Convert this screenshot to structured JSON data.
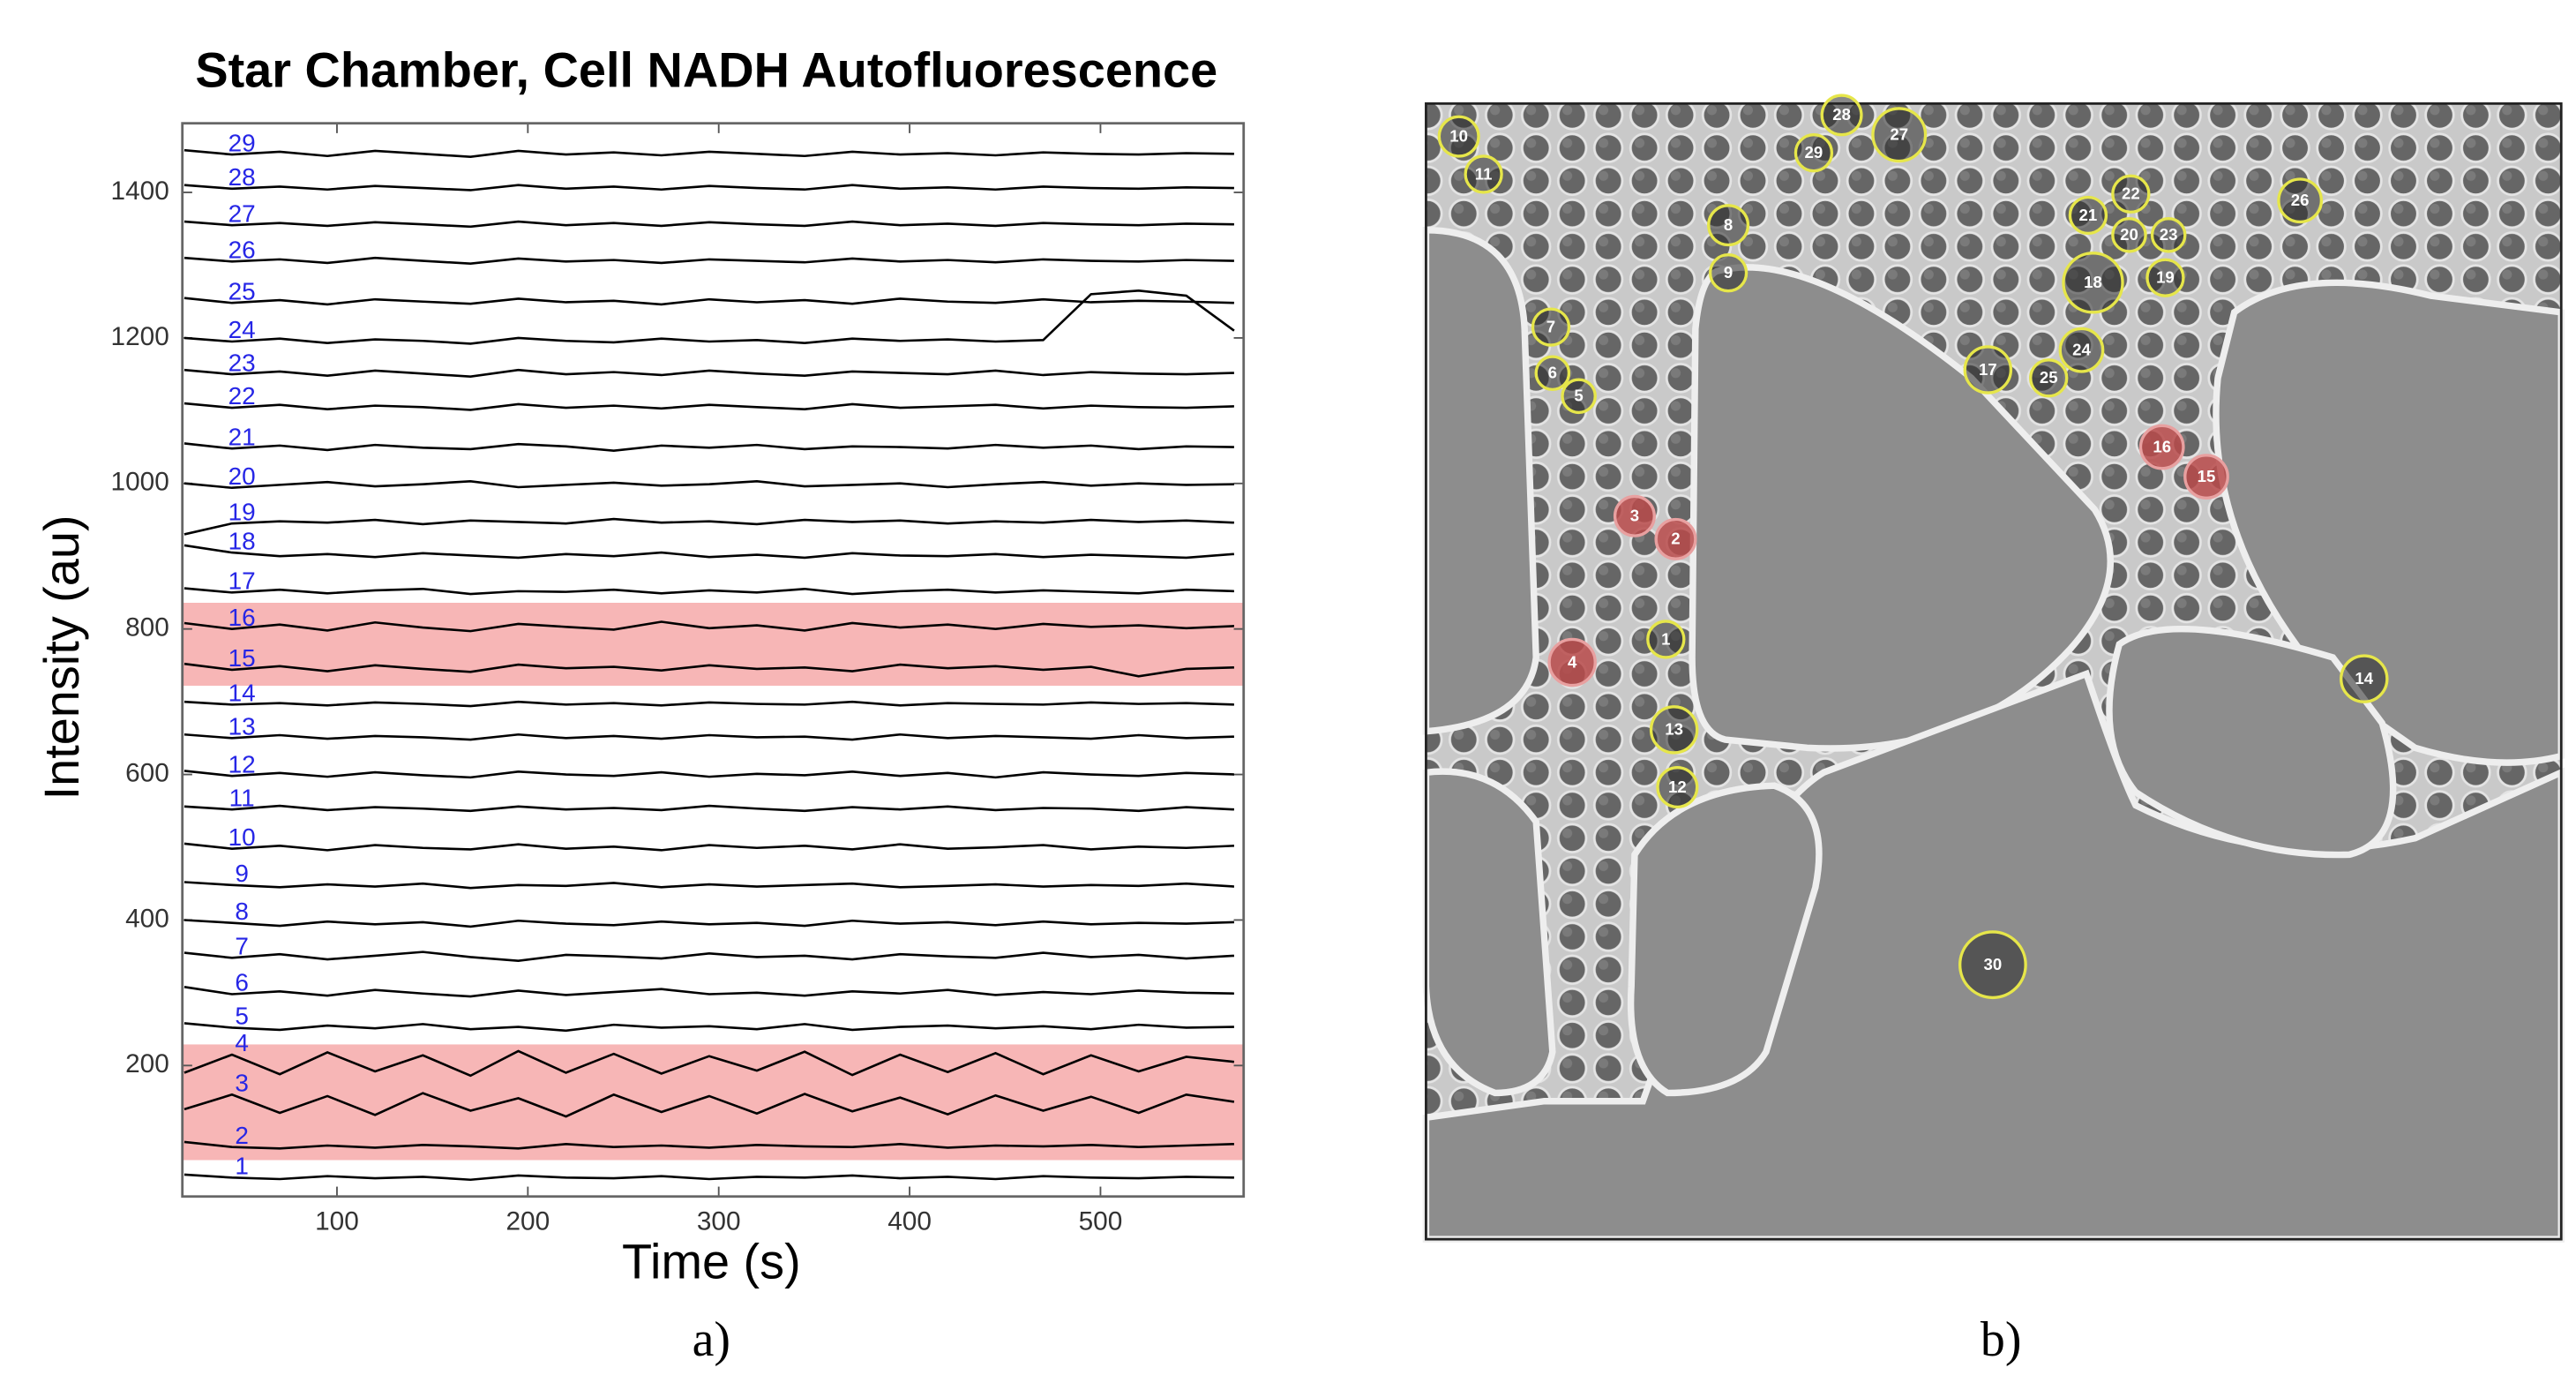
{
  "chart_data": {
    "type": "line",
    "title": "Star Chamber, Cell NADH Autofluorescence",
    "x_label": "Time (s)",
    "y_label": "Intensity (au)",
    "xlim": [
      19,
      575
    ],
    "xticks": [
      100,
      200,
      300,
      400,
      500
    ],
    "ylim": [
      20,
      1495
    ],
    "yticks": [
      200,
      400,
      600,
      800,
      1000,
      1200,
      1400
    ],
    "grid": false,
    "label_color": "#2626e6",
    "band_color": "#f7b6b6",
    "highlight_bands": [
      {
        "from": 70,
        "to": 229
      },
      {
        "from": 722,
        "to": 836
      }
    ],
    "x": [
      20,
      45,
      70,
      95,
      120,
      145,
      170,
      195,
      220,
      245,
      270,
      295,
      320,
      345,
      370,
      395,
      420,
      445,
      470,
      495,
      520,
      545,
      570
    ],
    "series": [
      {
        "name": "1",
        "color": "#000000",
        "values": [
          50,
          46,
          44,
          48,
          45,
          47,
          43,
          49,
          46,
          45,
          48,
          44,
          47,
          46,
          49,
          45,
          47,
          44,
          48,
          46,
          45,
          47,
          46
        ]
      },
      {
        "name": "2",
        "color": "#000000",
        "values": [
          95,
          88,
          86,
          90,
          87,
          91,
          89,
          86,
          92,
          88,
          90,
          87,
          91,
          89,
          88,
          92,
          87,
          90,
          89,
          91,
          88,
          90,
          92
        ]
      },
      {
        "name": "3",
        "color": "#000000",
        "values": [
          140,
          160,
          135,
          158,
          132,
          162,
          138,
          155,
          130,
          160,
          136,
          158,
          134,
          161,
          137,
          156,
          133,
          159,
          138,
          157,
          135,
          160,
          150
        ]
      },
      {
        "name": "4",
        "color": "#000000",
        "values": [
          190,
          215,
          188,
          218,
          192,
          214,
          186,
          220,
          190,
          216,
          189,
          213,
          193,
          219,
          187,
          215,
          191,
          217,
          188,
          214,
          192,
          212,
          205
        ]
      },
      {
        "name": "5",
        "color": "#000000",
        "values": [
          258,
          252,
          249,
          255,
          251,
          257,
          250,
          253,
          248,
          256,
          252,
          254,
          250,
          257,
          249,
          253,
          255,
          251,
          254,
          250,
          256,
          252,
          253
        ]
      },
      {
        "name": "6",
        "color": "#000000",
        "values": [
          308,
          298,
          302,
          296,
          304,
          299,
          295,
          303,
          297,
          301,
          305,
          298,
          300,
          296,
          302,
          299,
          304,
          297,
          301,
          298,
          303,
          300,
          299
        ]
      },
      {
        "name": "7",
        "color": "#000000",
        "values": [
          355,
          348,
          353,
          346,
          351,
          356,
          349,
          344,
          352,
          350,
          347,
          354,
          349,
          351,
          346,
          353,
          350,
          348,
          355,
          349,
          352,
          347,
          351
        ]
      },
      {
        "name": "8",
        "color": "#000000",
        "values": [
          400,
          396,
          392,
          398,
          394,
          397,
          391,
          399,
          395,
          393,
          398,
          394,
          396,
          392,
          399,
          395,
          397,
          393,
          398,
          394,
          396,
          395,
          397
        ]
      },
      {
        "name": "9",
        "color": "#000000",
        "values": [
          452,
          448,
          445,
          449,
          446,
          450,
          444,
          448,
          447,
          451,
          445,
          449,
          446,
          448,
          450,
          445,
          447,
          449,
          446,
          448,
          447,
          450,
          446
        ]
      },
      {
        "name": "10",
        "color": "#000000",
        "values": [
          505,
          498,
          502,
          496,
          503,
          499,
          497,
          504,
          498,
          501,
          496,
          503,
          499,
          502,
          497,
          504,
          498,
          500,
          503,
          497,
          501,
          499,
          502
        ]
      },
      {
        "name": "11",
        "color": "#000000",
        "values": [
          556,
          552,
          557,
          551,
          555,
          553,
          550,
          556,
          552,
          554,
          551,
          557,
          553,
          550,
          555,
          552,
          556,
          551,
          554,
          553,
          550,
          555,
          552
        ]
      },
      {
        "name": "12",
        "color": "#000000",
        "values": [
          605,
          598,
          602,
          597,
          603,
          599,
          596,
          604,
          600,
          598,
          603,
          597,
          601,
          599,
          604,
          598,
          602,
          596,
          603,
          600,
          598,
          602,
          600
        ]
      },
      {
        "name": "13",
        "color": "#000000",
        "values": [
          655,
          650,
          654,
          649,
          653,
          651,
          648,
          655,
          650,
          653,
          649,
          654,
          651,
          652,
          648,
          655,
          650,
          653,
          651,
          649,
          654,
          650,
          652
        ]
      },
      {
        "name": "14",
        "color": "#000000",
        "values": [
          700,
          696,
          698,
          695,
          699,
          697,
          694,
          700,
          696,
          698,
          695,
          699,
          697,
          696,
          700,
          695,
          698,
          697,
          696,
          699,
          697,
          698,
          696
        ]
      },
      {
        "name": "15",
        "color": "#000000",
        "values": [
          752,
          744,
          749,
          742,
          750,
          745,
          741,
          751,
          746,
          748,
          743,
          750,
          745,
          747,
          742,
          751,
          746,
          749,
          744,
          748,
          735,
          745,
          747
        ]
      },
      {
        "name": "16",
        "color": "#000000",
        "values": [
          808,
          800,
          806,
          798,
          809,
          802,
          797,
          807,
          803,
          799,
          810,
          801,
          805,
          798,
          808,
          802,
          806,
          800,
          807,
          803,
          805,
          801,
          804
        ]
      },
      {
        "name": "17",
        "color": "#000000",
        "values": [
          856,
          850,
          854,
          849,
          853,
          855,
          848,
          852,
          851,
          854,
          849,
          853,
          850,
          855,
          848,
          852,
          854,
          850,
          853,
          851,
          849,
          854,
          852
        ]
      },
      {
        "name": "18",
        "color": "#000000",
        "values": [
          915,
          905,
          900,
          903,
          899,
          904,
          901,
          898,
          903,
          900,
          905,
          899,
          902,
          898,
          904,
          901,
          900,
          903,
          899,
          902,
          900,
          898,
          903
        ]
      },
      {
        "name": "19",
        "color": "#000000",
        "values": [
          930,
          945,
          948,
          946,
          950,
          944,
          949,
          947,
          945,
          951,
          946,
          948,
          944,
          950,
          947,
          949,
          945,
          948,
          946,
          950,
          947,
          949,
          946
        ]
      },
      {
        "name": "20",
        "color": "#000000",
        "values": [
          1000,
          994,
          998,
          1002,
          996,
          999,
          1003,
          995,
          998,
          1001,
          997,
          999,
          1003,
          996,
          998,
          1000,
          995,
          999,
          1002,
          997,
          1000,
          998,
          999
        ]
      },
      {
        "name": "21",
        "color": "#000000",
        "values": [
          1055,
          1048,
          1052,
          1046,
          1053,
          1049,
          1047,
          1054,
          1051,
          1045,
          1052,
          1049,
          1053,
          1047,
          1051,
          1050,
          1048,
          1053,
          1049,
          1052,
          1047,
          1051,
          1050
        ]
      },
      {
        "name": "22",
        "color": "#000000",
        "values": [
          1110,
          1104,
          1108,
          1102,
          1107,
          1105,
          1101,
          1109,
          1104,
          1107,
          1103,
          1108,
          1105,
          1102,
          1109,
          1104,
          1106,
          1108,
          1103,
          1107,
          1105,
          1104,
          1106
        ]
      },
      {
        "name": "23",
        "color": "#000000",
        "values": [
          1156,
          1150,
          1154,
          1148,
          1155,
          1151,
          1147,
          1156,
          1150,
          1153,
          1149,
          1155,
          1151,
          1148,
          1154,
          1152,
          1150,
          1155,
          1149,
          1153,
          1151,
          1150,
          1152
        ]
      },
      {
        "name": "24",
        "color": "#000000",
        "values": [
          1200,
          1195,
          1199,
          1193,
          1198,
          1196,
          1192,
          1200,
          1196,
          1194,
          1199,
          1195,
          1197,
          1193,
          1199,
          1196,
          1198,
          1195,
          1197,
          1260,
          1265,
          1258,
          1210
        ]
      },
      {
        "name": "25",
        "color": "#000000",
        "values": [
          1255,
          1248,
          1252,
          1246,
          1253,
          1250,
          1247,
          1254,
          1249,
          1251,
          1246,
          1253,
          1249,
          1252,
          1247,
          1254,
          1250,
          1248,
          1253,
          1249,
          1251,
          1250,
          1248
        ]
      },
      {
        "name": "26",
        "color": "#000000",
        "values": [
          1310,
          1305,
          1308,
          1303,
          1310,
          1306,
          1302,
          1309,
          1305,
          1307,
          1303,
          1308,
          1306,
          1304,
          1309,
          1305,
          1307,
          1304,
          1308,
          1306,
          1305,
          1307,
          1306
        ]
      },
      {
        "name": "27",
        "color": "#000000",
        "values": [
          1360,
          1355,
          1358,
          1354,
          1359,
          1356,
          1353,
          1360,
          1355,
          1358,
          1354,
          1359,
          1356,
          1354,
          1360,
          1355,
          1357,
          1354,
          1358,
          1356,
          1355,
          1357,
          1356
        ]
      },
      {
        "name": "28",
        "color": "#000000",
        "values": [
          1410,
          1405,
          1408,
          1404,
          1409,
          1406,
          1403,
          1410,
          1405,
          1408,
          1404,
          1409,
          1406,
          1404,
          1410,
          1405,
          1407,
          1404,
          1408,
          1406,
          1405,
          1407,
          1406
        ]
      },
      {
        "name": "29",
        "color": "#000000",
        "values": [
          1458,
          1452,
          1456,
          1450,
          1457,
          1453,
          1449,
          1457,
          1452,
          1455,
          1451,
          1456,
          1453,
          1450,
          1456,
          1452,
          1454,
          1451,
          1455,
          1453,
          1452,
          1454,
          1453
        ]
      }
    ]
  },
  "caption_a": "a)",
  "image_panel": {
    "caption": "b)",
    "ring_color": "#e6e64a",
    "highlight_color": "#b84a4a",
    "cells": [
      {
        "label": "1",
        "highlighted": false
      },
      {
        "label": "2",
        "highlighted": true
      },
      {
        "label": "3",
        "highlighted": true
      },
      {
        "label": "4",
        "highlighted": true
      },
      {
        "label": "5",
        "highlighted": false
      },
      {
        "label": "6",
        "highlighted": false
      },
      {
        "label": "7",
        "highlighted": false
      },
      {
        "label": "8",
        "highlighted": false
      },
      {
        "label": "9",
        "highlighted": false
      },
      {
        "label": "10",
        "highlighted": false
      },
      {
        "label": "11",
        "highlighted": false
      },
      {
        "label": "12",
        "highlighted": false
      },
      {
        "label": "13",
        "highlighted": false
      },
      {
        "label": "14",
        "highlighted": false
      },
      {
        "label": "15",
        "highlighted": true
      },
      {
        "label": "16",
        "highlighted": true
      },
      {
        "label": "17",
        "highlighted": false
      },
      {
        "label": "18",
        "highlighted": false
      },
      {
        "label": "19",
        "highlighted": false
      },
      {
        "label": "20",
        "highlighted": false
      },
      {
        "label": "21",
        "highlighted": false
      },
      {
        "label": "22",
        "highlighted": false
      },
      {
        "label": "23",
        "highlighted": false
      },
      {
        "label": "24",
        "highlighted": false
      },
      {
        "label": "25",
        "highlighted": false
      },
      {
        "label": "26",
        "highlighted": false
      },
      {
        "label": "27",
        "highlighted": false
      },
      {
        "label": "28",
        "highlighted": false
      },
      {
        "label": "29",
        "highlighted": false
      },
      {
        "label": "30",
        "highlighted": false
      }
    ]
  }
}
